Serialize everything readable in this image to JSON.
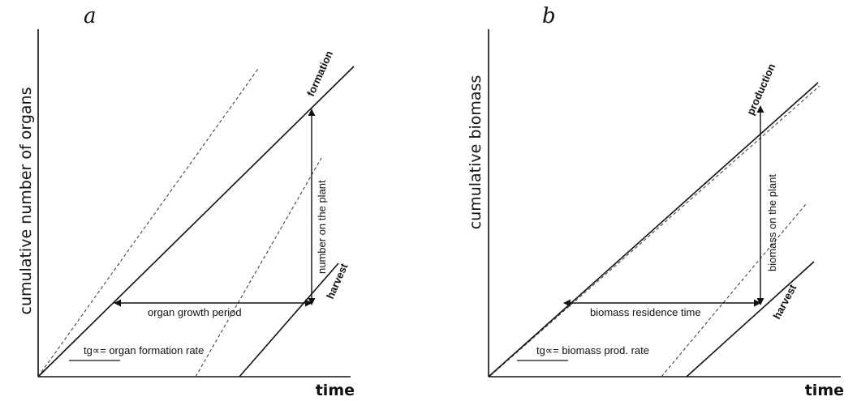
{
  "panels": {
    "a": {
      "letter": "a",
      "ylabel": "cumulative number of organs",
      "xlabel": "time",
      "line_formation": "formation",
      "line_harvest": "harvest",
      "vertical_span": "number on the plant",
      "horizontal_span": "organ growth period",
      "slope_label": "tg∝= organ formation rate"
    },
    "b": {
      "letter": "b",
      "ylabel": "cumulative biomass",
      "xlabel": "time",
      "line_formation": "production",
      "line_harvest": "harvest",
      "vertical_span": "biomass on the plant",
      "horizontal_span": "biomass residence time",
      "slope_label": "tg∝= biomass prod. rate"
    }
  }
}
